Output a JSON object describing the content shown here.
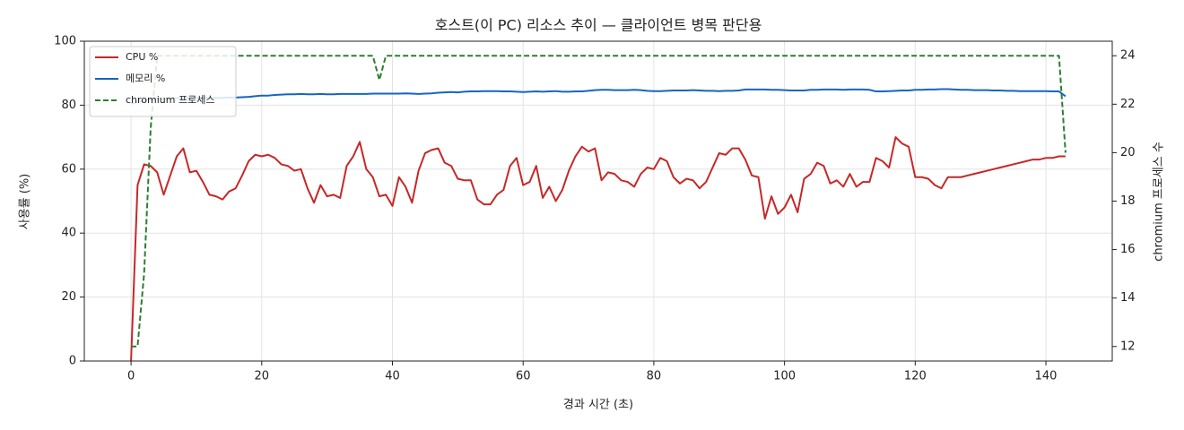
{
  "chart_data": {
    "type": "line",
    "title": "호스트(이 PC) 리소스 추이 — 클라이언트 병목 판단용",
    "xlabel": "경과 시간 (초)",
    "ylabel": "사용률 (%)",
    "y2label": "chromium 프로세스 수",
    "x": [
      0,
      1,
      2,
      3,
      4,
      5,
      6,
      7,
      8,
      9,
      10,
      11,
      12,
      13,
      14,
      15,
      16,
      17,
      18,
      19,
      20,
      21,
      22,
      23,
      24,
      25,
      26,
      27,
      28,
      29,
      30,
      31,
      32,
      33,
      34,
      35,
      36,
      37,
      38,
      39,
      40,
      41,
      42,
      43,
      44,
      45,
      46,
      47,
      48,
      49,
      50,
      51,
      52,
      53,
      54,
      55,
      56,
      57,
      58,
      59,
      60,
      61,
      62,
      63,
      64,
      65,
      66,
      67,
      68,
      69,
      70,
      71,
      72,
      73,
      74,
      75,
      76,
      77,
      78,
      79,
      80,
      81,
      82,
      83,
      84,
      85,
      86,
      87,
      88,
      89,
      90,
      91,
      92,
      93,
      94,
      95,
      96,
      97,
      98,
      99,
      100,
      101,
      102,
      103,
      104,
      105,
      106,
      107,
      108,
      109,
      110,
      111,
      112,
      113,
      114,
      115,
      116,
      117,
      118,
      119,
      120,
      121,
      122,
      123,
      124,
      125,
      126,
      127,
      128,
      129,
      130,
      131,
      132,
      133,
      134,
      135,
      136,
      137,
      138,
      139,
      140,
      141,
      142,
      143
    ],
    "series": [
      {
        "name": "CPU %",
        "color": "#c62828",
        "dash": false,
        "values": [
          0,
          55,
          61.5,
          61,
          59,
          52,
          58,
          64,
          66.5,
          59,
          59.5,
          56,
          52,
          51.5,
          50.5,
          53,
          54,
          58,
          62.5,
          64.5,
          64,
          64.5,
          63.5,
          61.5,
          61,
          59.5,
          60,
          54,
          49.5,
          55,
          51.5,
          52,
          51,
          61,
          64,
          68.5,
          60,
          57.5,
          51.5,
          52,
          48.5,
          57.5,
          54.5,
          49.5,
          59.5,
          65,
          66,
          66.5,
          62,
          61,
          57,
          56.5,
          56.5,
          50.5,
          49,
          49,
          52,
          53.5,
          61,
          63.5,
          55,
          56,
          61,
          51,
          54.5,
          50,
          53.5,
          59.5,
          64,
          67,
          65.5,
          66.5,
          56.5,
          59,
          58.5,
          56.5,
          56,
          54.5,
          58.5,
          60.5,
          60,
          63.5,
          62.5,
          57.5,
          55.5,
          57,
          56.5,
          54,
          56,
          60.5,
          65,
          64.5,
          66.5,
          66.5,
          63,
          58,
          57.5,
          44.5,
          51.5,
          46,
          48,
          52,
          46.5,
          57,
          58.5,
          62,
          61,
          55.5,
          56.5,
          54.5,
          58.5,
          54.5,
          56,
          56,
          63.5,
          62.5,
          60.5,
          70,
          68,
          67,
          57.5,
          57.5,
          57,
          55,
          54,
          57.5,
          57.5,
          57.5,
          58,
          58.5,
          59,
          59.5,
          60,
          60.5,
          61,
          61.5,
          62,
          62.5,
          63,
          63,
          63.5,
          63.5,
          64,
          64
        ]
      },
      {
        "name": "메모리 %",
        "color": "#1565c0",
        "dash": false,
        "values": [
          80.5,
          81,
          81.5,
          81.8,
          82,
          82,
          82.1,
          82.2,
          82.2,
          82.3,
          82.3,
          82.3,
          82.3,
          82.3,
          82.3,
          82.4,
          82.4,
          82.5,
          82.6,
          82.8,
          83,
          83,
          83.2,
          83.3,
          83.4,
          83.4,
          83.5,
          83.4,
          83.4,
          83.5,
          83.4,
          83.4,
          83.5,
          83.5,
          83.5,
          83.5,
          83.5,
          83.6,
          83.6,
          83.6,
          83.6,
          83.6,
          83.7,
          83.6,
          83.5,
          83.6,
          83.7,
          83.9,
          84,
          84.1,
          84,
          84.2,
          84.3,
          84.3,
          84.4,
          84.4,
          84.4,
          84.3,
          84.3,
          84.2,
          84.1,
          84.2,
          84.3,
          84.2,
          84.3,
          84.4,
          84.2,
          84.2,
          84.3,
          84.3,
          84.5,
          84.7,
          84.8,
          84.8,
          84.7,
          84.7,
          84.7,
          84.8,
          84.7,
          84.5,
          84.4,
          84.4,
          84.5,
          84.6,
          84.6,
          84.6,
          84.7,
          84.6,
          84.5,
          84.5,
          84.4,
          84.5,
          84.5,
          84.6,
          84.9,
          84.9,
          84.9,
          84.9,
          84.8,
          84.8,
          84.7,
          84.6,
          84.6,
          84.6,
          84.8,
          84.8,
          84.9,
          84.9,
          84.9,
          84.8,
          84.9,
          84.9,
          84.9,
          84.8,
          84.3,
          84.3,
          84.4,
          84.5,
          84.6,
          84.6,
          84.8,
          84.8,
          84.9,
          84.9,
          85,
          85,
          84.9,
          84.8,
          84.8,
          84.7,
          84.7,
          84.7,
          84.6,
          84.6,
          84.5,
          84.5,
          84.4,
          84.4,
          84.4,
          84.4,
          84.4,
          84.3,
          84.3,
          82.8
        ]
      },
      {
        "name": "chromium 프로세스",
        "color": "#2e7d32",
        "dash": true,
        "axis": "y2",
        "values": [
          12,
          12,
          15,
          21,
          24,
          24,
          24,
          24,
          24,
          24,
          24,
          24,
          24,
          24,
          24,
          24,
          24,
          24,
          24,
          24,
          24,
          24,
          24,
          24,
          24,
          24,
          24,
          24,
          24,
          24,
          24,
          24,
          24,
          24,
          24,
          24,
          24,
          24,
          23,
          24,
          24,
          24,
          24,
          24,
          24,
          24,
          24,
          24,
          24,
          24,
          24,
          24,
          24,
          24,
          24,
          24,
          24,
          24,
          24,
          24,
          24,
          24,
          24,
          24,
          24,
          24,
          24,
          24,
          24,
          24,
          24,
          24,
          24,
          24,
          24,
          24,
          24,
          24,
          24,
          24,
          24,
          24,
          24,
          24,
          24,
          24,
          24,
          24,
          24,
          24,
          24,
          24,
          24,
          24,
          24,
          24,
          24,
          24,
          24,
          24,
          24,
          24,
          24,
          24,
          24,
          24,
          24,
          24,
          24,
          24,
          24,
          24,
          24,
          24,
          24,
          24,
          24,
          24,
          24,
          24,
          24,
          24,
          24,
          24,
          24,
          24,
          24,
          24,
          24,
          24,
          24,
          24,
          24,
          24,
          24,
          24,
          24,
          24,
          24,
          24,
          24,
          24,
          24,
          20
        ]
      }
    ],
    "xlim": [
      -7.15,
      150.15
    ],
    "xticks": [
      0,
      20,
      40,
      60,
      80,
      100,
      120,
      140
    ],
    "ylim": [
      0,
      100
    ],
    "yticks": [
      0,
      20,
      40,
      60,
      80,
      100
    ],
    "y2lim": [
      11.4,
      24.6
    ],
    "y2ticks": [
      12,
      14,
      16,
      18,
      20,
      22,
      24
    ],
    "grid": true,
    "legend": "upper left"
  }
}
